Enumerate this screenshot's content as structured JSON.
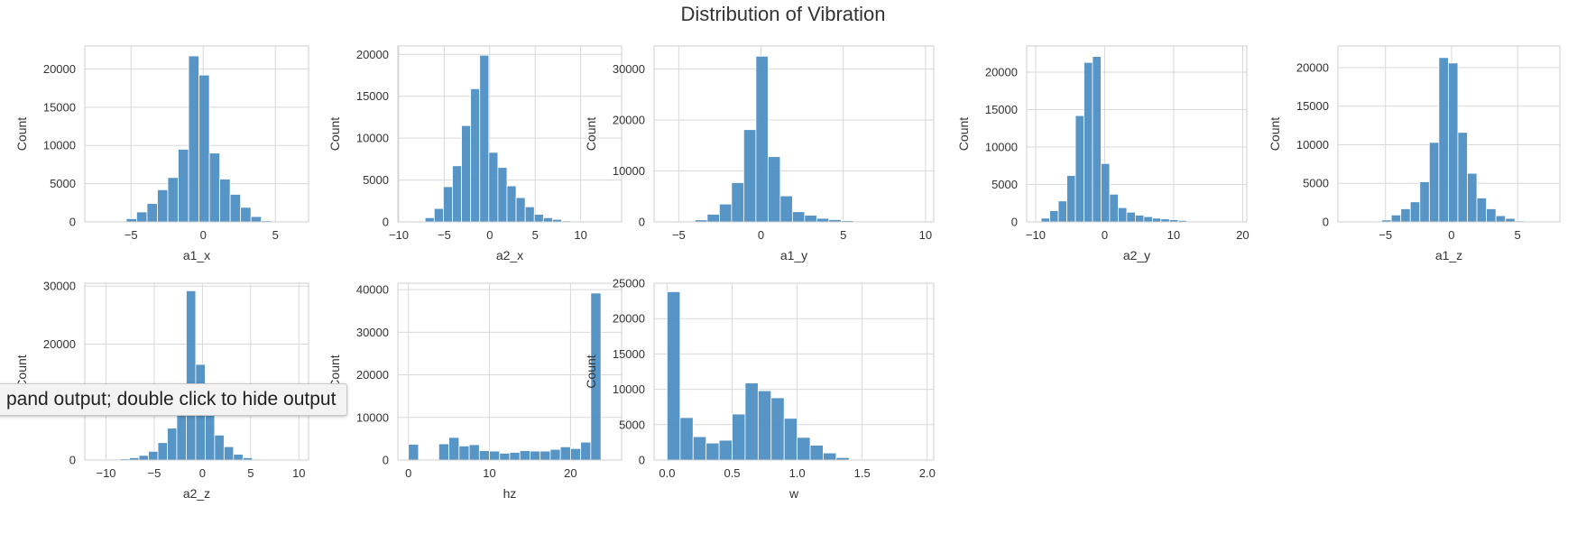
{
  "figure": {
    "title": "Distribution of Vibration",
    "colors": {
      "bar_fill": "#4e8fc3",
      "bar_stroke": "#ffffff",
      "grid": "#d9d9d9",
      "frame": "#cfcfcf"
    }
  },
  "tooltip": {
    "text": "pand output; double click to hide output"
  },
  "chart_data": [
    {
      "type": "bar",
      "xlabel": "a1_x",
      "ylabel": "Count",
      "xlim": [
        -8.2,
        7.3
      ],
      "ylim": [
        0,
        23000
      ],
      "xticks": [
        -5,
        0,
        5
      ],
      "yticks": [
        0,
        5000,
        10000,
        15000,
        20000
      ],
      "bin_start": -6.05,
      "bin_width": 0.72,
      "values": [
        80,
        420,
        1300,
        2400,
        4200,
        5800,
        9500,
        21700,
        19200,
        9000,
        5600,
        3600,
        1900,
        700,
        150
      ]
    },
    {
      "type": "bar",
      "xlabel": "a2_x",
      "ylabel": "Count",
      "xlim": [
        -10.1,
        14.5
      ],
      "ylim": [
        0,
        21000
      ],
      "xticks": [
        -10,
        -5,
        0,
        5,
        10
      ],
      "yticks": [
        0,
        5000,
        10000,
        15000,
        20000
      ],
      "bin_start": -8.1,
      "bin_width": 1.0,
      "values": [
        100,
        500,
        1600,
        4200,
        6700,
        11500,
        15900,
        19900,
        8300,
        6500,
        4300,
        2900,
        1800,
        900,
        500,
        300,
        120
      ]
    },
    {
      "type": "bar",
      "xlabel": "a1_y",
      "ylabel": "Count",
      "xlim": [
        -6.5,
        10.5
      ],
      "ylim": [
        0,
        34500
      ],
      "xticks": [
        -5,
        0,
        5,
        10
      ],
      "yticks": [
        0,
        10000,
        20000,
        30000
      ],
      "bin_start": -4.75,
      "bin_width": 0.74,
      "values": [
        100,
        400,
        1500,
        3500,
        7700,
        18100,
        32500,
        12800,
        5100,
        2000,
        1300,
        700,
        450,
        250,
        150,
        80,
        50,
        30,
        20,
        20
      ]
    },
    {
      "type": "bar",
      "xlabel": "a2_y",
      "ylabel": "Count",
      "xlim": [
        -11.3,
        20.6
      ],
      "ylim": [
        0,
        23500
      ],
      "xticks": [
        -10,
        0,
        10,
        20
      ],
      "yticks": [
        0,
        5000,
        10000,
        15000,
        20000
      ],
      "bin_start": -9.2,
      "bin_width": 1.24,
      "values": [
        500,
        1500,
        2800,
        6200,
        14200,
        21300,
        22100,
        7800,
        3700,
        1900,
        1300,
        900,
        700,
        500,
        400,
        300,
        200,
        100,
        50,
        30,
        20,
        20
      ]
    },
    {
      "type": "bar",
      "xlabel": "a1_z",
      "ylabel": "Count",
      "xlim": [
        -8.6,
        8.2
      ],
      "ylim": [
        0,
        22800
      ],
      "xticks": [
        -5,
        0,
        5
      ],
      "yticks": [
        0,
        5000,
        10000,
        15000,
        20000
      ],
      "bin_start": -6.0,
      "bin_width": 0.72,
      "values": [
        60,
        250,
        900,
        1700,
        2600,
        5200,
        10300,
        21300,
        20600,
        11600,
        6300,
        3100,
        1700,
        800,
        450,
        130,
        50
      ]
    },
    {
      "type": "bar",
      "xlabel": "a2_z",
      "ylabel": "Count",
      "xlim": [
        -12.2,
        11.0
      ],
      "ylim": [
        0,
        30500
      ],
      "xticks": [
        -10,
        -5,
        0,
        5,
        10
      ],
      "yticks": [
        0,
        10000,
        20000,
        30000
      ],
      "bin_start": -10.5,
      "bin_width": 0.98,
      "values": [
        50,
        100,
        200,
        400,
        800,
        1500,
        3000,
        5500,
        9000,
        29200,
        16500,
        9000,
        4300,
        2300,
        1000,
        400,
        150,
        50,
        20,
        20
      ]
    },
    {
      "type": "bar",
      "xlabel": "hz",
      "ylabel": "Count",
      "xlim": [
        -1.3,
        26.3
      ],
      "ylim": [
        0,
        41500
      ],
      "xticks": [
        0,
        10,
        20
      ],
      "yticks": [
        0,
        10000,
        20000,
        30000,
        40000
      ],
      "bin_start": 0.0,
      "bin_width": 1.25,
      "values": [
        3700,
        0,
        0,
        3800,
        5300,
        3300,
        3600,
        2200,
        2100,
        1600,
        1800,
        2200,
        2100,
        2100,
        2500,
        3100,
        2700,
        4200,
        39200
      ]
    },
    {
      "type": "bar",
      "xlabel": "w",
      "ylabel": "Count",
      "xlim": [
        -0.1,
        2.05
      ],
      "ylim": [
        0,
        25000
      ],
      "xticks": [
        0.0,
        0.5,
        1.0,
        1.5,
        2.0
      ],
      "xtick_decimals": 1,
      "yticks": [
        0,
        5000,
        10000,
        15000,
        20000,
        25000
      ],
      "bin_start": 0.0,
      "bin_width": 0.1,
      "values": [
        23800,
        6000,
        3300,
        2400,
        2800,
        6500,
        10900,
        9800,
        8800,
        5900,
        3200,
        2100,
        1000,
        350,
        80,
        40,
        20,
        10,
        10,
        5
      ]
    }
  ]
}
